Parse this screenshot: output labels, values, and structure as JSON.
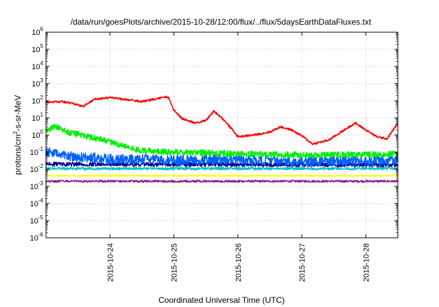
{
  "chart_data": {
    "type": "line",
    "title": "/data/run/goesPlots/archive/2015-10-28/12:00/flux/../flux/5daysEarthDataFluxes.txt",
    "xlabel": "Coordinated Universal Time (UTC)",
    "ylabel": {
      "base": "protons/cm",
      "sup": "2",
      "rest": "-s-sr-MeV"
    },
    "xlim": [
      "2015-10-23T00:00",
      "2015-10-28T12:00"
    ],
    "x_tick_labels": [
      "2015-10-24",
      "2015-10-25",
      "2015-10-26",
      "2015-10-27",
      "2015-10-28"
    ],
    "x_tick_values": [
      "2015-10-24",
      "2015-10-25",
      "2015-10-26",
      "2015-10-27",
      "2015-10-28"
    ],
    "y_scale": "log",
    "ylim": [
      1e-06,
      1000000.0
    ],
    "y_tick_labels": [
      {
        "base": "10",
        "exp": "-6"
      },
      {
        "base": "10",
        "exp": "-5"
      },
      {
        "base": "10",
        "exp": "-4"
      },
      {
        "base": "10",
        "exp": "-3"
      },
      {
        "base": "10",
        "exp": "-2"
      },
      {
        "base": "10",
        "exp": "-1"
      },
      {
        "base": "10",
        "exp": "0"
      },
      {
        "base": "10",
        "exp": "1"
      },
      {
        "base": "10",
        "exp": "2"
      },
      {
        "base": "10",
        "exp": "3"
      },
      {
        "base": "10",
        "exp": "4"
      },
      {
        "base": "10",
        "exp": "5"
      },
      {
        "base": "10",
        "exp": "6"
      }
    ],
    "grid": true,
    "series": [
      {
        "color": "#ff0000",
        "noise": 0.06,
        "points": [
          [
            "2015-10-23T00:00",
            80
          ],
          [
            "2015-10-23T06:00",
            90
          ],
          [
            "2015-10-23T10:00",
            70
          ],
          [
            "2015-10-23T14:00",
            45
          ],
          [
            "2015-10-23T18:00",
            120
          ],
          [
            "2015-10-24T00:00",
            150
          ],
          [
            "2015-10-24T06:00",
            120
          ],
          [
            "2015-10-24T12:00",
            90
          ],
          [
            "2015-10-24T18:00",
            130
          ],
          [
            "2015-10-24T20:00",
            180
          ],
          [
            "2015-10-24T22:00",
            150
          ],
          [
            "2015-10-25T00:00",
            30
          ],
          [
            "2015-10-25T03:00",
            9
          ],
          [
            "2015-10-25T08:00",
            5
          ],
          [
            "2015-10-25T12:00",
            7
          ],
          [
            "2015-10-25T15:00",
            25
          ],
          [
            "2015-10-25T18:00",
            10
          ],
          [
            "2015-10-25T22:00",
            2
          ],
          [
            "2015-10-26T00:00",
            0.8
          ],
          [
            "2015-10-26T06:00",
            1
          ],
          [
            "2015-10-26T12:00",
            1.5
          ],
          [
            "2015-10-26T16:00",
            3
          ],
          [
            "2015-10-26T20:00",
            2
          ],
          [
            "2015-10-27T00:00",
            0.9
          ],
          [
            "2015-10-27T04:00",
            0.3
          ],
          [
            "2015-10-27T10:00",
            0.5
          ],
          [
            "2015-10-27T16:00",
            2
          ],
          [
            "2015-10-27T20:00",
            5
          ],
          [
            "2015-10-28T00:00",
            2
          ],
          [
            "2015-10-28T04:00",
            0.8
          ],
          [
            "2015-10-28T08:00",
            0.6
          ],
          [
            "2015-10-28T12:00",
            5
          ]
        ]
      },
      {
        "color": "#00ee00",
        "noise": 0.18,
        "points": [
          [
            "2015-10-23T00:00",
            2
          ],
          [
            "2015-10-23T04:00",
            3
          ],
          [
            "2015-10-23T08:00",
            1.5
          ],
          [
            "2015-10-23T16:00",
            0.8
          ],
          [
            "2015-10-24T00:00",
            0.4
          ],
          [
            "2015-10-24T06:00",
            0.2
          ],
          [
            "2015-10-24T12:00",
            0.12
          ],
          [
            "2015-10-25T00:00",
            0.1
          ],
          [
            "2015-10-26T00:00",
            0.08
          ],
          [
            "2015-10-27T00:00",
            0.07
          ],
          [
            "2015-10-28T00:00",
            0.07
          ],
          [
            "2015-10-28T12:00",
            0.08
          ]
        ]
      },
      {
        "color": "#0060ff",
        "noise": 0.3,
        "points": [
          [
            "2015-10-23T00:00",
            0.1
          ],
          [
            "2015-10-23T12:00",
            0.05
          ],
          [
            "2015-10-24T00:00",
            0.04
          ],
          [
            "2015-10-25T00:00",
            0.035
          ],
          [
            "2015-10-26T00:00",
            0.035
          ],
          [
            "2015-10-27T00:00",
            0.03
          ],
          [
            "2015-10-28T00:00",
            0.03
          ],
          [
            "2015-10-28T12:00",
            0.03
          ]
        ]
      },
      {
        "color": "#00008b",
        "noise": 0.12,
        "points": [
          [
            "2015-10-23T00:00",
            0.02
          ],
          [
            "2015-10-28T12:00",
            0.018
          ]
        ]
      },
      {
        "color": "#00c0c0",
        "noise": 0.08,
        "points": [
          [
            "2015-10-23T00:00",
            0.011
          ],
          [
            "2015-10-28T12:00",
            0.011
          ]
        ]
      },
      {
        "color": "#ffff00",
        "noise": 0.04,
        "points": [
          [
            "2015-10-23T00:00",
            0.0042
          ],
          [
            "2015-10-28T12:00",
            0.0042
          ]
        ]
      },
      {
        "color": "#8b1a89",
        "noise": 0.06,
        "points": [
          [
            "2015-10-23T00:00",
            0.002
          ],
          [
            "2015-10-28T12:00",
            0.002
          ]
        ]
      }
    ]
  }
}
